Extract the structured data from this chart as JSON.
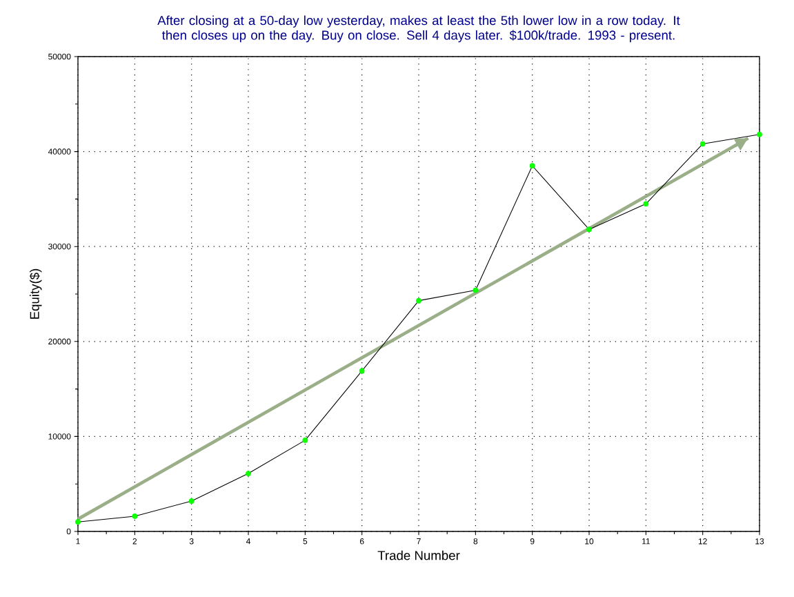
{
  "chart_data": {
    "type": "line",
    "title": "After closing at a 50-day low yesterday, makes at least the 5th lower low in a row today. It then closes up on the day. Buy on close. Sell 4 days later. $100k/trade. 1993 - present.",
    "xlabel": "Trade Number",
    "ylabel": "Equity($)",
    "x": [
      1,
      2,
      3,
      4,
      5,
      6,
      7,
      8,
      9,
      10,
      11,
      12,
      13
    ],
    "series": [
      {
        "color": "#000000",
        "marker": "circle",
        "values": [
          1000,
          1600,
          3200,
          6100,
          9600,
          16900,
          24300,
          25400,
          38500,
          31800,
          34500,
          40800,
          41800
        ]
      },
      {
        "color": "#9aae88",
        "marker": "none",
        "x": [
          1,
          12.8
        ],
        "values": [
          1300,
          41400
        ]
      }
    ],
    "xlim": [
      1,
      13
    ],
    "ylim": [
      0,
      50000
    ],
    "xticks": [
      1,
      2,
      3,
      4,
      5,
      6,
      7,
      8,
      9,
      10,
      11,
      12,
      13
    ],
    "yticks": [
      0,
      10000,
      20000,
      30000,
      40000,
      50000
    ],
    "grid": true
  }
}
